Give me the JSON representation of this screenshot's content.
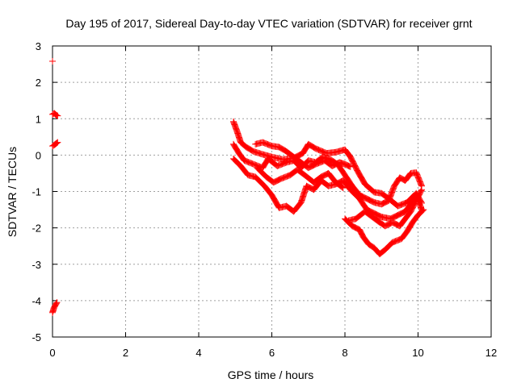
{
  "chart_data": {
    "type": "scatter",
    "title": "Day 195 of 2017, Sidereal Day-to-day VTEC variation (SDTVAR) for receiver grnt",
    "xlabel": "GPS time / hours",
    "ylabel": "SDTVAR / TECUs",
    "xlim": [
      0,
      12
    ],
    "ylim": [
      -5,
      3
    ],
    "xticks": [
      0,
      2,
      4,
      6,
      8,
      10,
      12
    ],
    "yticks": [
      -5,
      -4,
      -3,
      -2,
      -1,
      0,
      1,
      2,
      3
    ],
    "grid": true,
    "legend": "none",
    "marker": "plus",
    "color": "#ff0000",
    "segments": [
      [
        [
          0.0,
          2.58
        ]
      ],
      [
        [
          0.0,
          1.12
        ],
        [
          0.05,
          1.15
        ],
        [
          0.1,
          1.1
        ],
        [
          0.14,
          1.08
        ]
      ],
      [
        [
          0.0,
          0.25
        ],
        [
          0.05,
          0.28
        ],
        [
          0.1,
          0.32
        ],
        [
          0.14,
          0.35
        ]
      ],
      [
        [
          0.0,
          -4.33
        ],
        [
          0.04,
          -4.2
        ],
        [
          0.08,
          -4.12
        ],
        [
          0.12,
          -4.05
        ]
      ],
      [
        [
          4.95,
          0.92
        ],
        [
          5.05,
          0.65
        ],
        [
          5.15,
          0.35
        ],
        [
          5.3,
          0.22
        ],
        [
          5.5,
          0.1
        ],
        [
          5.75,
          0.02
        ],
        [
          6.0,
          -0.05
        ],
        [
          6.3,
          -0.12
        ],
        [
          6.6,
          -0.08
        ],
        [
          6.85,
          0.05
        ],
        [
          7.0,
          0.3
        ],
        [
          7.2,
          0.18
        ],
        [
          7.5,
          0.05
        ],
        [
          7.75,
          0.08
        ],
        [
          8.0,
          0.15
        ],
        [
          8.15,
          -0.05
        ],
        [
          8.35,
          -0.45
        ],
        [
          8.55,
          -0.8
        ],
        [
          8.8,
          -1.02
        ],
        [
          9.0,
          -1.05
        ],
        [
          9.2,
          -1.2
        ],
        [
          9.45,
          -1.4
        ],
        [
          9.7,
          -1.3
        ],
        [
          9.95,
          -1.05
        ],
        [
          10.1,
          -1.32
        ]
      ],
      [
        [
          4.95,
          0.3
        ],
        [
          5.1,
          0.05
        ],
        [
          5.25,
          -0.15
        ],
        [
          5.5,
          -0.25
        ],
        [
          5.75,
          -0.35
        ],
        [
          5.9,
          -0.1
        ],
        [
          6.15,
          -0.3
        ],
        [
          6.4,
          -0.2
        ],
        [
          6.6,
          -0.15
        ],
        [
          6.8,
          -0.35
        ],
        [
          7.0,
          -0.15
        ],
        [
          7.2,
          -0.2
        ],
        [
          7.4,
          -0.05
        ],
        [
          7.6,
          -0.12
        ],
        [
          7.8,
          -0.25
        ],
        [
          8.0,
          -0.55
        ],
        [
          8.2,
          -0.85
        ],
        [
          8.4,
          -1.1
        ],
        [
          8.6,
          -1.2
        ],
        [
          8.8,
          -1.3
        ],
        [
          9.0,
          -1.35
        ],
        [
          9.2,
          -1.25
        ],
        [
          9.35,
          -0.85
        ],
        [
          9.5,
          -0.62
        ],
        [
          9.65,
          -0.7
        ],
        [
          9.8,
          -0.5
        ],
        [
          9.95,
          -0.48
        ],
        [
          10.1,
          -0.85
        ]
      ],
      [
        [
          4.95,
          -0.1
        ],
        [
          5.15,
          -0.3
        ],
        [
          5.35,
          -0.55
        ],
        [
          5.55,
          -0.6
        ],
        [
          5.8,
          -0.85
        ],
        [
          6.0,
          -1.1
        ],
        [
          6.2,
          -1.45
        ],
        [
          6.4,
          -1.4
        ],
        [
          6.6,
          -1.55
        ],
        [
          6.8,
          -1.3
        ],
        [
          6.95,
          -0.85
        ],
        [
          7.15,
          -0.95
        ],
        [
          7.35,
          -0.7
        ],
        [
          7.55,
          -0.85
        ],
        [
          7.75,
          -0.8
        ],
        [
          7.95,
          -0.7
        ],
        [
          8.15,
          -0.95
        ],
        [
          8.4,
          -1.2
        ],
        [
          8.6,
          -1.5
        ],
        [
          8.8,
          -1.6
        ],
        [
          9.0,
          -1.7
        ],
        [
          9.25,
          -1.75
        ],
        [
          9.45,
          -1.65
        ],
        [
          9.65,
          -1.55
        ],
        [
          9.8,
          -1.35
        ],
        [
          9.95,
          -1.1
        ],
        [
          10.1,
          -1.5
        ]
      ],
      [
        [
          5.55,
          0.3
        ],
        [
          5.75,
          0.35
        ],
        [
          6.0,
          0.25
        ],
        [
          6.2,
          0.22
        ],
        [
          6.4,
          0.1
        ],
        [
          6.6,
          -0.05
        ],
        [
          6.8,
          -0.2
        ],
        [
          7.0,
          -0.35
        ],
        [
          7.2,
          -0.25
        ],
        [
          7.45,
          -0.15
        ],
        [
          7.65,
          -0.3
        ],
        [
          7.85,
          -0.2
        ],
        [
          8.0,
          -0.25
        ],
        [
          8.15,
          -0.32
        ]
      ],
      [
        [
          5.6,
          -0.35
        ],
        [
          5.85,
          -0.6
        ],
        [
          6.05,
          -0.75
        ],
        [
          6.25,
          -0.65
        ],
        [
          6.5,
          -0.55
        ],
        [
          6.7,
          -0.4
        ],
        [
          6.9,
          -0.55
        ],
        [
          7.15,
          -0.75
        ],
        [
          7.35,
          -0.6
        ],
        [
          7.55,
          -0.5
        ],
        [
          7.75,
          -0.75
        ],
        [
          7.95,
          -0.9
        ]
      ],
      [
        [
          8.0,
          -1.75
        ],
        [
          8.2,
          -1.95
        ],
        [
          8.4,
          -2.05
        ],
        [
          8.5,
          -2.25
        ],
        [
          8.65,
          -2.45
        ],
        [
          8.8,
          -2.55
        ],
        [
          8.95,
          -2.72
        ],
        [
          9.1,
          -2.6
        ],
        [
          9.3,
          -2.4
        ],
        [
          9.55,
          -2.3
        ],
        [
          9.7,
          -2.1
        ],
        [
          9.85,
          -1.85
        ],
        [
          10.0,
          -1.65
        ],
        [
          10.15,
          -1.5
        ]
      ],
      [
        [
          8.1,
          -1.8
        ],
        [
          8.3,
          -1.75
        ],
        [
          8.55,
          -1.55
        ],
        [
          8.75,
          -1.7
        ],
        [
          8.95,
          -1.85
        ],
        [
          9.1,
          -1.95
        ],
        [
          9.3,
          -1.85
        ],
        [
          9.5,
          -1.95
        ],
        [
          9.65,
          -1.75
        ],
        [
          9.8,
          -1.55
        ],
        [
          9.95,
          -1.25
        ],
        [
          10.1,
          -0.95
        ]
      ]
    ]
  }
}
